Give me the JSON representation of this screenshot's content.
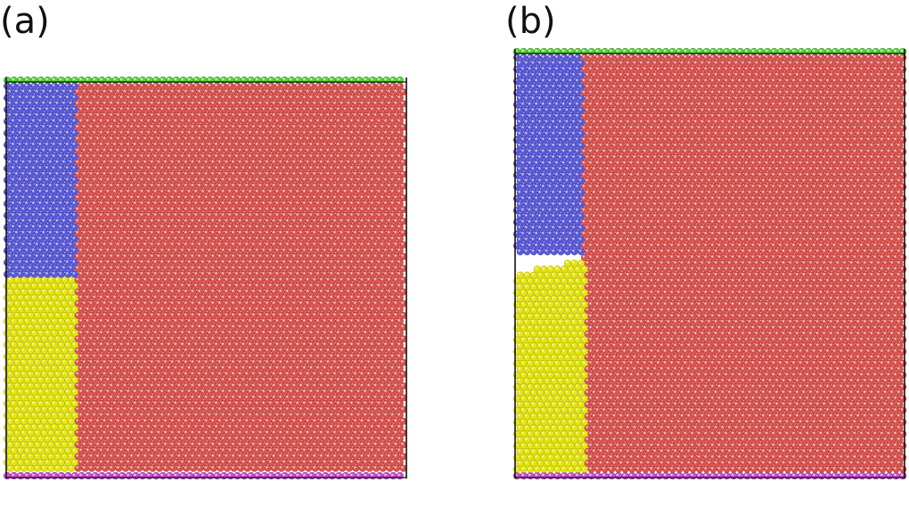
{
  "panels": [
    {
      "id": "a",
      "label": "(a)"
    },
    {
      "id": "b",
      "label": "(b)"
    }
  ],
  "colors": {
    "background": "#ffffff",
    "frame": "#111111",
    "matrix_red": "#d9534f",
    "matrix_red_edge": "#a93530",
    "blue": "#5a5ad8",
    "blue_edge": "#3a3aa8",
    "yellow": "#e6e60a",
    "yellow_edge": "#a6a600",
    "green": "#5ad83a",
    "green_edge": "#2f9a1a",
    "magenta": "#d050d8",
    "magenta_edge": "#8a2a90",
    "highlight": "#ffffff"
  },
  "regions": [
    {
      "name": "top-boundary-layer",
      "color": "green"
    },
    {
      "name": "bottom-boundary-layer",
      "color": "magenta"
    },
    {
      "name": "upper-left-grain",
      "color": "blue"
    },
    {
      "name": "lower-left-grain",
      "color": "yellow"
    },
    {
      "name": "matrix",
      "color": "matrix_red"
    }
  ],
  "crack_present": {
    "a": false,
    "b": true
  }
}
